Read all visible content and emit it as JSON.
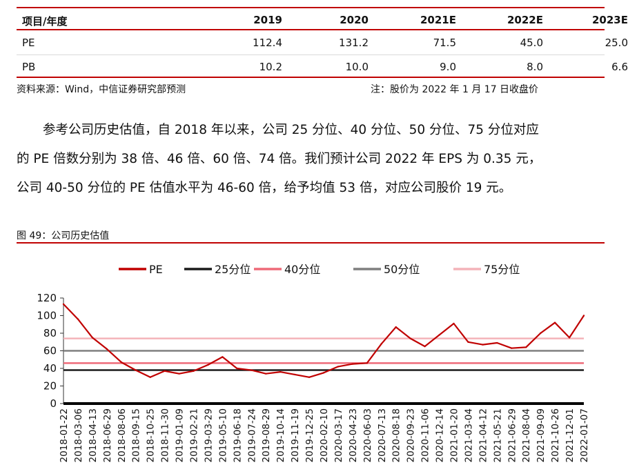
{
  "table": {
    "headers": [
      "项目/年度",
      "2019",
      "2020",
      "2021E",
      "2022E",
      "2023E"
    ],
    "rows": [
      {
        "label": "PE",
        "values": [
          "112.4",
          "131.2",
          "71.5",
          "45.0",
          "25.0"
        ]
      },
      {
        "label": "PB",
        "values": [
          "10.2",
          "10.0",
          "9.0",
          "8.0",
          "6.6"
        ]
      }
    ]
  },
  "source": "资料来源：Wind，中信证券研究部预测",
  "note": "注：股价为 2022 年 1 月 17 日收盘价",
  "paragraph": {
    "line1": "参考公司历史估值，自 2018 年以来，公司 25 分位、40 分位、50 分位、75 分位对应",
    "line2": "的 PE 倍数分别为 38 倍、46 倍、60 倍、74 倍。我们预计公司 2022 年 EPS 为 0.35 元，",
    "line3": "公司 40-50 分位的 PE 估值水平为 46-60 倍，给予均值 53 倍，对应公司股价 19 元。"
  },
  "figure_title": "图 49：公司历史估值",
  "colors": {
    "accent": "#c00000"
  },
  "chart_data": {
    "type": "line",
    "ylim": [
      0,
      120
    ],
    "yticks": [
      0,
      20,
      40,
      60,
      80,
      100,
      120
    ],
    "legend_position": "top",
    "x": [
      "2018-01-22",
      "2018-03-06",
      "2018-04-13",
      "2018-06-29",
      "2018-08-06",
      "2018-09-15",
      "2018-10-25",
      "2018-11-30",
      "2019-01-09",
      "2019-02-21",
      "2019-03-29",
      "2019-05-10",
      "2019-06-18",
      "2019-07-24",
      "2019-08-29",
      "2019-10-14",
      "2019-11-19",
      "2019-12-25",
      "2020-02-10",
      "2020-03-17",
      "2020-04-23",
      "2020-06-03",
      "2020-07-13",
      "2020-08-18",
      "2020-09-23",
      "2020-11-06",
      "2020-12-14",
      "2021-01-20",
      "2021-03-04",
      "2021-04-12",
      "2021-05-21",
      "2021-06-29",
      "2021-08-04",
      "2021-09-09",
      "2021-10-26",
      "2021-12-01",
      "2022-01-07"
    ],
    "series": [
      {
        "name": "PE",
        "color": "#c00000",
        "values": [
          113,
          96,
          75,
          62,
          47,
          38,
          30,
          37,
          34,
          37,
          44,
          53,
          40,
          38,
          34,
          36,
          33,
          30,
          35,
          42,
          45,
          46,
          68,
          87,
          74,
          65,
          78,
          91,
          70,
          67,
          69,
          63,
          64,
          80,
          92,
          75,
          100
        ]
      },
      {
        "name": "25分位",
        "color": "#1a1a1a",
        "constant": 38
      },
      {
        "name": "40分位",
        "color": "#ee6a78",
        "constant": 46
      },
      {
        "name": "50分位",
        "color": "#7f7f7f",
        "constant": 60
      },
      {
        "name": "75分位",
        "color": "#f4b3b9",
        "constant": 74
      }
    ]
  }
}
